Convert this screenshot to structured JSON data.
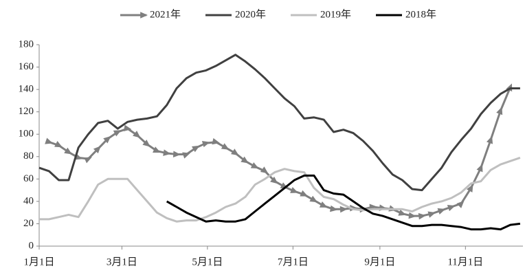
{
  "chart_data": {
    "type": "line",
    "x": [
      0,
      7,
      14,
      21,
      28,
      35,
      42,
      49,
      56,
      63,
      70,
      77,
      84,
      91,
      98,
      105,
      112,
      119,
      126,
      133,
      140,
      147,
      154,
      161,
      168,
      175,
      182,
      189,
      196,
      203,
      210,
      217,
      224,
      231,
      238,
      245,
      252,
      259,
      266,
      273,
      280,
      287,
      294,
      301,
      308,
      315,
      322,
      329,
      336,
      343
    ],
    "xlim": [
      0,
      345
    ],
    "xticks": [
      {
        "value": 0,
        "label": "1月1日"
      },
      {
        "value": 59,
        "label": "3月1日"
      },
      {
        "value": 120,
        "label": "5月1日"
      },
      {
        "value": 181,
        "label": "7月1日"
      },
      {
        "value": 243,
        "label": "9月1日"
      },
      {
        "value": 304,
        "label": "11月1日"
      }
    ],
    "ylim": [
      0,
      180
    ],
    "yticks": [
      0,
      20,
      40,
      60,
      80,
      100,
      120,
      140,
      160,
      180
    ],
    "grid": false,
    "legend": "top",
    "series": [
      {
        "name": "2021年",
        "color": "#7f7f7f",
        "marker": "triangle",
        "values": [
          null,
          93,
          90,
          84,
          79,
          78,
          87,
          96,
          102,
          105,
          99,
          91,
          85,
          83,
          82,
          82,
          88,
          92,
          93,
          88,
          83,
          76,
          71,
          67,
          58,
          53,
          49,
          46,
          41,
          36,
          33,
          33,
          34,
          33,
          35,
          34,
          33,
          29,
          27,
          27,
          29,
          32,
          35,
          38,
          52,
          70,
          95,
          121,
          142,
          null
        ]
      },
      {
        "name": "2020年",
        "color": "#404040",
        "marker": "none",
        "values": [
          70,
          67,
          59,
          59,
          88,
          100,
          110,
          112,
          105,
          111,
          113,
          114,
          116,
          126,
          141,
          150,
          155,
          157,
          161,
          166,
          171,
          165,
          158,
          150,
          141,
          132,
          125,
          114,
          115,
          113,
          102,
          104,
          101,
          94,
          85,
          74,
          64,
          59,
          51,
          50,
          60,
          70,
          84,
          95,
          105,
          118,
          128,
          136,
          141,
          141
        ]
      },
      {
        "name": "2019年",
        "color": "#bfbfbf",
        "marker": "none",
        "values": [
          24,
          24,
          26,
          28,
          26,
          40,
          55,
          60,
          60,
          60,
          50,
          40,
          30,
          25,
          22,
          23,
          23,
          26,
          30,
          35,
          38,
          44,
          55,
          60,
          66,
          69,
          67,
          66,
          52,
          44,
          42,
          37,
          33,
          32,
          33,
          33,
          33,
          33,
          31,
          35,
          38,
          40,
          43,
          48,
          56,
          58,
          68,
          73,
          76,
          79
        ]
      },
      {
        "name": "2018年",
        "color": "#000000",
        "marker": "none",
        "values": [
          null,
          null,
          null,
          null,
          null,
          null,
          null,
          null,
          null,
          null,
          null,
          null,
          null,
          40,
          35,
          30,
          26,
          22,
          23,
          22,
          22,
          24,
          31,
          38,
          45,
          52,
          59,
          63,
          63,
          50,
          47,
          46,
          40,
          34,
          29,
          27,
          24,
          21,
          18,
          18,
          19,
          19,
          18,
          17,
          15,
          15,
          16,
          15,
          19,
          20
        ]
      }
    ]
  }
}
